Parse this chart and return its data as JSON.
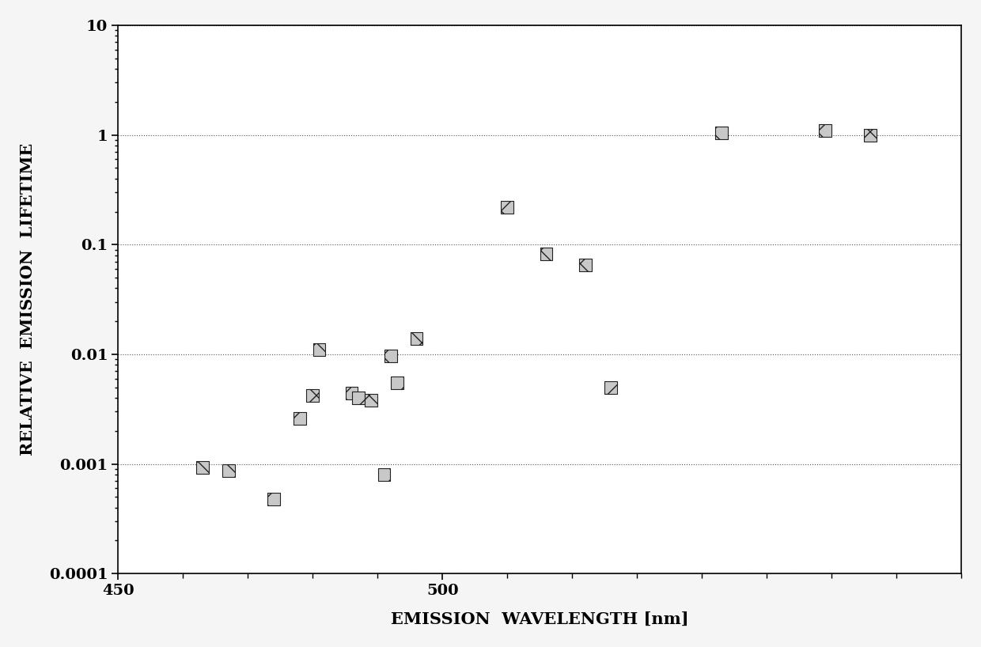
{
  "x_data": [
    463,
    467,
    474,
    478,
    481,
    486,
    480,
    487,
    492,
    496,
    491,
    493,
    489,
    510,
    516,
    522,
    526,
    543,
    559,
    566
  ],
  "y_data": [
    0.00093,
    0.00087,
    0.00048,
    0.0026,
    0.011,
    0.0044,
    0.0042,
    0.004,
    0.0097,
    0.014,
    0.0008,
    0.0055,
    0.0038,
    0.22,
    0.082,
    0.065,
    0.005,
    1.05,
    1.1,
    1.0
  ],
  "xlabel": "EMISSION  WAVELENGTH [nm]",
  "ylabel": "RELATIVE  EMISSION  LIFETIME",
  "xlim": [
    450,
    580
  ],
  "ylim_low": 0.0001,
  "ylim_high": 10,
  "background_color": "#f5f5f5",
  "plot_bg_color": "#ffffff",
  "marker_hatch": "x",
  "marker_facecolor": "#c8c8c8",
  "marker_edgecolor": "#222222",
  "marker_size": 130,
  "grid_color": "#555555",
  "grid_linestyle": ":",
  "axis_label_fontsize": 15,
  "tick_fontsize": 14,
  "ytick_labels": [
    "10",
    "1",
    "0.1",
    "0.01",
    "0.001",
    "0.0001"
  ],
  "ytick_values": [
    10,
    1,
    0.1,
    0.01,
    0.001,
    0.0001
  ]
}
